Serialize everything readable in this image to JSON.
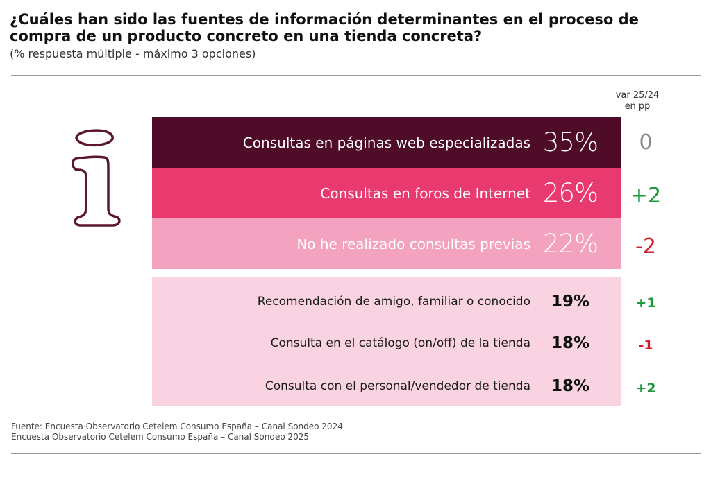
{
  "title": "¿Cuáles han sido las fuentes de información determinantes en el proceso de compra de un producto concreto en una tienda concreta?",
  "subtitle": "(% respuesta múltiple - máximo 3 opciones)",
  "var_header": [
    "var 25/24",
    "en pp"
  ],
  "icon": "info-i-icon",
  "colors": {
    "bar_1": "#4e0c28",
    "bar_2": "#e83a6f",
    "bar_3": "#f3a2c0",
    "panel": "#f9d3e2",
    "positive": "#1e9a3c",
    "negative": "#d0212b",
    "neutral": "#8a8a8a",
    "icon_stroke": "#5a1530"
  },
  "chart_data": {
    "type": "table",
    "top_rows": [
      {
        "label": "Consultas en páginas web especializadas",
        "value": "35%",
        "var": "0"
      },
      {
        "label": "Consultas en foros de Internet",
        "value": "26%",
        "var": "+2"
      },
      {
        "label": "No he realizado consultas previas",
        "value": "22%",
        "var": "-2"
      }
    ],
    "other_rows": [
      {
        "label": "Recomendación de amigo, familiar o conocido",
        "value": "19%",
        "var": "+1"
      },
      {
        "label": "Consulta en el catálogo (on/off) de la tienda",
        "value": "18%",
        "var": "-1"
      },
      {
        "label": "Consulta con el personal/vendedor de tienda",
        "value": "18%",
        "var": "+2"
      }
    ]
  },
  "source": [
    "Fuente: Encuesta Observatorio Cetelem Consumo España – Canal Sondeo 2024",
    "Encuesta Observatorio Cetelem Consumo España – Canal Sondeo 2025"
  ]
}
